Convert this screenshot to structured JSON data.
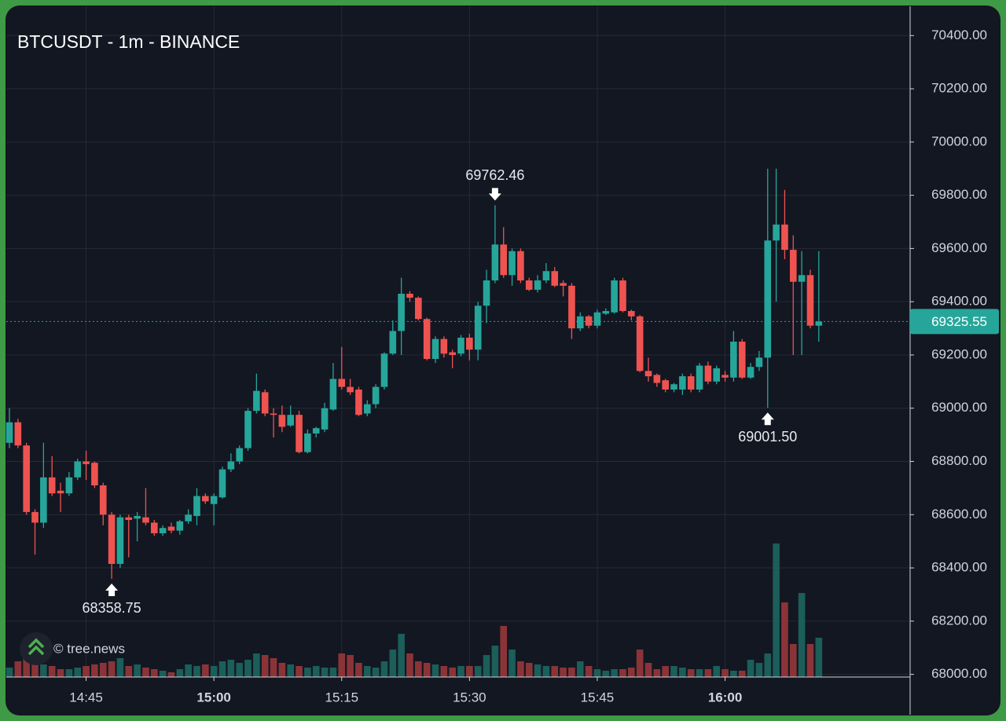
{
  "chart_data": {
    "type": "candlestick",
    "title": "BTCUSDT - 1m - BINANCE",
    "watermark": "© tree.news",
    "x": [
      "14:36",
      "14:37",
      "14:38",
      "14:39",
      "14:40",
      "14:41",
      "14:42",
      "14:43",
      "14:44",
      "14:45",
      "14:46",
      "14:47",
      "14:48",
      "14:49",
      "14:50",
      "14:51",
      "14:52",
      "14:53",
      "14:54",
      "14:55",
      "14:56",
      "14:57",
      "14:58",
      "14:59",
      "15:00",
      "15:01",
      "15:02",
      "15:03",
      "15:04",
      "15:05",
      "15:06",
      "15:07",
      "15:08",
      "15:09",
      "15:10",
      "15:11",
      "15:12",
      "15:13",
      "15:14",
      "15:15",
      "15:16",
      "15:17",
      "15:18",
      "15:19",
      "15:20",
      "15:21",
      "15:22",
      "15:23",
      "15:24",
      "15:25",
      "15:26",
      "15:27",
      "15:28",
      "15:29",
      "15:30",
      "15:31",
      "15:32",
      "15:33",
      "15:34",
      "15:35",
      "15:36",
      "15:37",
      "15:38",
      "15:39",
      "15:40",
      "15:41",
      "15:42",
      "15:43",
      "15:44",
      "15:45",
      "15:46",
      "15:47",
      "15:48",
      "15:49",
      "15:50",
      "15:51",
      "15:52",
      "15:53",
      "15:54",
      "15:55",
      "15:56",
      "15:57",
      "15:58",
      "15:59",
      "16:00",
      "16:01",
      "16:02",
      "16:03",
      "16:04",
      "16:05",
      "16:06",
      "16:07",
      "16:08",
      "16:09",
      "16:10",
      "16:11"
    ],
    "open": [
      68870,
      68947,
      68860,
      68610,
      68570,
      68740,
      68690,
      68680,
      68740,
      68800,
      68795,
      68710,
      68600,
      68415,
      68590,
      68585,
      68590,
      68570,
      68530,
      68555,
      68540,
      68575,
      68595,
      68670,
      68640,
      68665,
      68770,
      68800,
      68850,
      68990,
      69060,
      68980,
      68975,
      68935,
      68975,
      68835,
      68905,
      68920,
      68995,
      69110,
      69080,
      69070,
      68980,
      69015,
      69080,
      69205,
      69290,
      69430,
      69415,
      69335,
      69185,
      69260,
      69210,
      69205,
      69265,
      69220,
      69385,
      69480,
      69615,
      69500,
      69590,
      69480,
      69445,
      69480,
      69515,
      69470,
      69460,
      69300,
      69345,
      69310,
      69355,
      69360,
      69480,
      69365,
      69345,
      69140,
      69125,
      69105,
      69070,
      69070,
      69120,
      69070,
      69160,
      69100,
      69125,
      69115,
      69250,
      69115,
      69155,
      69190,
      69630,
      69690,
      69595,
      69475,
      69500,
      69310
    ],
    "high": [
      69000,
      68960,
      68870,
      68620,
      68870,
      68820,
      68720,
      68760,
      68810,
      68840,
      68800,
      68720,
      68610,
      68600,
      68600,
      68610,
      68700,
      68580,
      68560,
      68570,
      68580,
      68620,
      68700,
      68680,
      68680,
      68780,
      68830,
      68860,
      69000,
      69130,
      69070,
      69000,
      69010,
      69010,
      68990,
      68920,
      68930,
      69020,
      69170,
      69230,
      69110,
      69080,
      69030,
      69090,
      69210,
      69330,
      69490,
      69440,
      69420,
      69340,
      69270,
      69270,
      69220,
      69275,
      69280,
      69400,
      69520,
      69762.46,
      69680,
      69600,
      69600,
      69490,
      69500,
      69545,
      69530,
      69480,
      69470,
      69360,
      69350,
      69370,
      69375,
      69490,
      69490,
      69370,
      69350,
      69190,
      69130,
      69110,
      69095,
      69130,
      69130,
      69170,
      69175,
      69160,
      69140,
      69290,
      69260,
      69170,
      69215,
      69900,
      69900,
      69820,
      69650,
      69590,
      69520,
      69590
    ],
    "low": [
      68850,
      68850,
      68600,
      68450,
      68550,
      68670,
      68610,
      68670,
      68730,
      68730,
      68700,
      68560,
      68358.75,
      68400,
      68440,
      68500,
      68560,
      68520,
      68520,
      68530,
      68525,
      68565,
      68560,
      68640,
      68560,
      68660,
      68760,
      68790,
      68840,
      68980,
      68970,
      68890,
      68910,
      68930,
      68830,
      68830,
      68890,
      68910,
      68990,
      69070,
      69050,
      68970,
      68970,
      69000,
      69070,
      69200,
      69200,
      69400,
      69330,
      69180,
      69170,
      69190,
      69150,
      69195,
      69180,
      69180,
      69320,
      69470,
      69490,
      69460,
      69470,
      69440,
      69435,
      69470,
      69455,
      69420,
      69260,
      69290,
      69300,
      69300,
      69350,
      69355,
      69360,
      69330,
      69135,
      69100,
      69080,
      69060,
      69060,
      69050,
      69060,
      69060,
      69090,
      69090,
      69100,
      69100,
      69110,
      69110,
      69140,
      69001.5,
      69400,
      69560,
      69200,
      69200,
      69300,
      69250
    ],
    "close": [
      68947,
      68860,
      68610,
      68570,
      68740,
      68680,
      68680,
      68740,
      68800,
      68790,
      68710,
      68600,
      68415,
      68590,
      68580,
      68595,
      68570,
      68530,
      68550,
      68540,
      68575,
      68600,
      68670,
      68650,
      68670,
      68770,
      68800,
      68850,
      68990,
      69065,
      68980,
      68975,
      68930,
      68975,
      68835,
      68905,
      68925,
      69000,
      69110,
      69080,
      69060,
      68975,
      69015,
      69080,
      69205,
      69290,
      69430,
      69415,
      69335,
      69185,
      69260,
      69205,
      69200,
      69265,
      69220,
      69385,
      69480,
      69615,
      69500,
      69590,
      69480,
      69445,
      69480,
      69515,
      69460,
      69460,
      69300,
      69345,
      69310,
      69360,
      69365,
      69480,
      69365,
      69345,
      69140,
      69120,
      69095,
      69070,
      69090,
      69120,
      69070,
      69160,
      69100,
      69150,
      69115,
      69250,
      69115,
      69155,
      69190,
      69630,
      69690,
      69595,
      69475,
      69500,
      69310,
      69325.55
    ],
    "volume": [
      12,
      20,
      28,
      22,
      16,
      14,
      10,
      10,
      12,
      14,
      16,
      18,
      20,
      24,
      14,
      16,
      12,
      10,
      8,
      6,
      10,
      16,
      14,
      16,
      14,
      20,
      22,
      18,
      22,
      30,
      28,
      24,
      18,
      16,
      14,
      12,
      14,
      12,
      12,
      30,
      28,
      18,
      14,
      12,
      20,
      35,
      55,
      30,
      20,
      18,
      16,
      14,
      12,
      14,
      14,
      14,
      28,
      40,
      65,
      35,
      20,
      18,
      16,
      14,
      14,
      12,
      12,
      20,
      14,
      10,
      8,
      10,
      10,
      12,
      35,
      18,
      10,
      14,
      14,
      12,
      10,
      10,
      10,
      14,
      10,
      8,
      8,
      22,
      18,
      30,
      170,
      95,
      42,
      107,
      42,
      50
    ],
    "up_color": "#26a69a",
    "down_color": "#ef5350",
    "up_volume_color": "#1b5e5a",
    "down_volume_color": "#8b3438",
    "ylim": [
      67990,
      70510
    ],
    "yticks": [
      {
        "value": 68000,
        "label": "68000.00"
      },
      {
        "value": 68200,
        "label": "68200.00"
      },
      {
        "value": 68400,
        "label": "68400.00"
      },
      {
        "value": 68600,
        "label": "68600.00"
      },
      {
        "value": 68800,
        "label": "68800.00"
      },
      {
        "value": 69000,
        "label": "69000.00"
      },
      {
        "value": 69200,
        "label": "69200.00"
      },
      {
        "value": 69400,
        "label": "69400.00"
      },
      {
        "value": 69600,
        "label": "69600.00"
      },
      {
        "value": 69800,
        "label": "69800.00"
      },
      {
        "value": 70000,
        "label": "70000.00"
      },
      {
        "value": 70200,
        "label": "70200.00"
      },
      {
        "value": 70400,
        "label": "70400.00"
      }
    ],
    "xticks": [
      "14:45",
      "15:00",
      "15:15",
      "15:30",
      "15:45",
      "16:00"
    ],
    "last_price": 69325.55,
    "grid": true,
    "annotations": [
      {
        "x": "15:33",
        "value": 69762.46,
        "label": "69762.46",
        "position": "above"
      },
      {
        "x": "14:48",
        "value": 68358.75,
        "label": "68358.75",
        "position": "below"
      },
      {
        "x": "16:05",
        "value": 69001.5,
        "label": "69001.50",
        "position": "below"
      }
    ]
  }
}
